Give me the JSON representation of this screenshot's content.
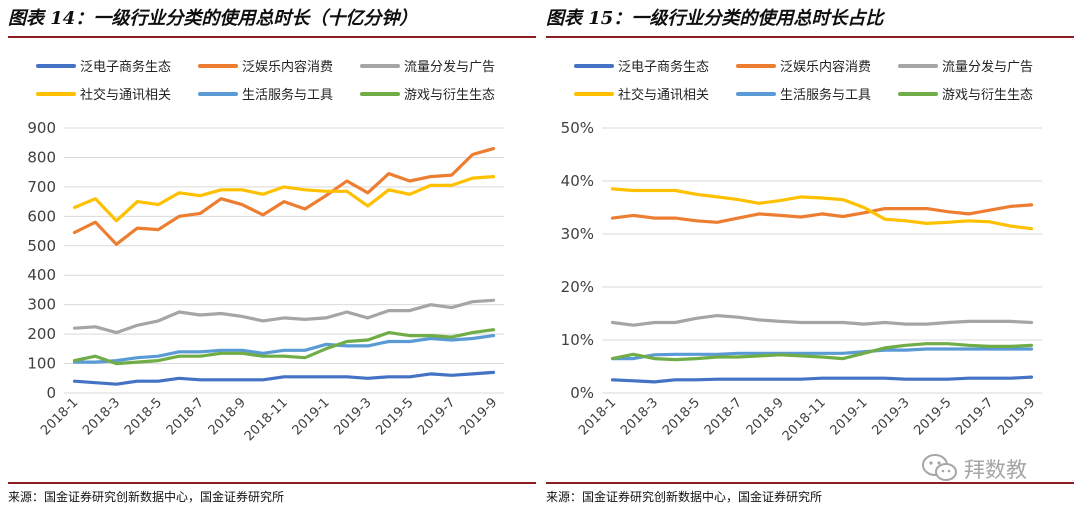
{
  "panels": [
    {
      "title": "图表 14：一级行业分类的使用总时长（十亿分钟）",
      "source": "来源：国金证券研究创新数据中心，国金证券研究所",
      "chart_data": {
        "type": "line",
        "title": "一级行业分类的使用总时长（十亿分钟）",
        "xlabel": "",
        "ylabel": "",
        "x": [
          "2018-1",
          "2018-2",
          "2018-3",
          "2018-4",
          "2018-5",
          "2018-6",
          "2018-7",
          "2018-8",
          "2018-9",
          "2018-10",
          "2018-11",
          "2018-12",
          "2019-1",
          "2019-2",
          "2019-3",
          "2019-4",
          "2019-5",
          "2019-6",
          "2019-7",
          "2019-8",
          "2019-9"
        ],
        "tick_labels": [
          "2018-1",
          "2018-3",
          "2018-5",
          "2018-7",
          "2018-9",
          "2018-11",
          "2019-1",
          "2019-3",
          "2019-5",
          "2019-7",
          "2019-9"
        ],
        "ylim": [
          0,
          900
        ],
        "yticks": [
          0,
          100,
          200,
          300,
          400,
          500,
          600,
          700,
          800,
          900
        ],
        "ytick_labels": [
          "0",
          "100",
          "200",
          "300",
          "400",
          "500",
          "600",
          "700",
          "800",
          "900"
        ],
        "grid": true,
        "legend_position": "top",
        "series": [
          {
            "name": "泛电子商务生态",
            "color": "#4472c4",
            "values": [
              40,
              35,
              30,
              40,
              40,
              50,
              45,
              45,
              45,
              45,
              55,
              55,
              55,
              55,
              50,
              55,
              55,
              65,
              60,
              65,
              70
            ]
          },
          {
            "name": "泛娱乐内容消费",
            "color": "#ed7d31",
            "values": [
              545,
              580,
              505,
              560,
              555,
              600,
              610,
              660,
              640,
              605,
              650,
              625,
              670,
              720,
              680,
              745,
              720,
              735,
              740,
              810,
              830
            ]
          },
          {
            "name": "流量分发与广告",
            "color": "#a5a5a5",
            "values": [
              220,
              225,
              205,
              230,
              245,
              275,
              265,
              270,
              260,
              245,
              255,
              250,
              255,
              275,
              255,
              280,
              280,
              300,
              290,
              310,
              315
            ]
          },
          {
            "name": "社交与通讯相关",
            "color": "#ffc000",
            "values": [
              630,
              660,
              585,
              650,
              640,
              680,
              670,
              690,
              690,
              675,
              700,
              690,
              685,
              685,
              635,
              690,
              675,
              705,
              705,
              730,
              735
            ]
          },
          {
            "name": "生活服务与工具",
            "color": "#5b9bd5",
            "values": [
              105,
              105,
              110,
              120,
              125,
              140,
              140,
              145,
              145,
              135,
              145,
              145,
              165,
              160,
              160,
              175,
              175,
              185,
              180,
              185,
              195
            ]
          },
          {
            "name": "游戏与衍生生态",
            "color": "#70ad47",
            "values": [
              110,
              125,
              100,
              105,
              110,
              125,
              125,
              135,
              135,
              125,
              125,
              120,
              150,
              175,
              180,
              205,
              195,
              195,
              190,
              205,
              215
            ]
          }
        ]
      }
    },
    {
      "title": "图表 15：一级行业分类的使用总时长占比",
      "source": "来源：国金证券研究创新数据中心，国金证券研究所",
      "chart_data": {
        "type": "line",
        "title": "一级行业分类的使用总时长占比",
        "xlabel": "",
        "ylabel": "",
        "x": [
          "2018-1",
          "2018-2",
          "2018-3",
          "2018-4",
          "2018-5",
          "2018-6",
          "2018-7",
          "2018-8",
          "2018-9",
          "2018-10",
          "2018-11",
          "2018-12",
          "2019-1",
          "2019-2",
          "2019-3",
          "2019-4",
          "2019-5",
          "2019-6",
          "2019-7",
          "2019-8",
          "2019-9"
        ],
        "tick_labels": [
          "2018-1",
          "2018-3",
          "2018-5",
          "2018-7",
          "2018-9",
          "2018-11",
          "2019-1",
          "2019-3",
          "2019-5",
          "2019-7",
          "2019-9"
        ],
        "ylim": [
          0,
          50
        ],
        "yticks": [
          0,
          10,
          20,
          30,
          40,
          50
        ],
        "ytick_labels": [
          "0%",
          "10%",
          "20%",
          "30%",
          "40%",
          "50%"
        ],
        "grid": true,
        "legend_position": "top",
        "series": [
          {
            "name": "泛电子商务生态",
            "color": "#4472c4",
            "values": [
              2.5,
              2.3,
              2.1,
              2.5,
              2.5,
              2.6,
              2.6,
              2.6,
              2.6,
              2.6,
              2.8,
              2.8,
              2.8,
              2.8,
              2.6,
              2.6,
              2.6,
              2.8,
              2.8,
              2.8,
              3.0
            ]
          },
          {
            "name": "泛娱乐内容消费",
            "color": "#ed7d31",
            "values": [
              33.0,
              33.5,
              33.0,
              33.0,
              32.5,
              32.2,
              33.0,
              33.8,
              33.5,
              33.2,
              33.8,
              33.3,
              34.0,
              34.8,
              34.8,
              34.8,
              34.2,
              33.8,
              34.5,
              35.2,
              35.5
            ]
          },
          {
            "name": "流量分发与广告",
            "color": "#a5a5a5",
            "values": [
              13.3,
              12.8,
              13.3,
              13.3,
              14.1,
              14.6,
              14.3,
              13.8,
              13.5,
              13.3,
              13.3,
              13.3,
              13.0,
              13.3,
              13.0,
              13.0,
              13.3,
              13.5,
              13.5,
              13.5,
              13.3
            ]
          },
          {
            "name": "社交与通讯相关",
            "color": "#ffc000",
            "values": [
              38.5,
              38.2,
              38.2,
              38.2,
              37.5,
              37.0,
              36.5,
              35.8,
              36.3,
              37.0,
              36.8,
              36.5,
              35.0,
              32.8,
              32.5,
              32.0,
              32.2,
              32.5,
              32.3,
              31.5,
              31.0
            ]
          },
          {
            "name": "生活服务与工具",
            "color": "#5b9bd5",
            "values": [
              6.5,
              6.5,
              7.2,
              7.3,
              7.3,
              7.3,
              7.5,
              7.5,
              7.5,
              7.5,
              7.5,
              7.5,
              7.8,
              8.1,
              8.1,
              8.3,
              8.3,
              8.3,
              8.3,
              8.3,
              8.3
            ]
          },
          {
            "name": "游戏与衍生生态",
            "color": "#70ad47",
            "values": [
              6.5,
              7.3,
              6.5,
              6.3,
              6.5,
              6.8,
              6.8,
              7.0,
              7.2,
              7.0,
              6.8,
              6.5,
              7.5,
              8.5,
              9.0,
              9.3,
              9.3,
              9.0,
              8.8,
              8.8,
              9.0
            ]
          }
        ]
      }
    }
  ],
  "watermark": {
    "text": "拜数教"
  }
}
